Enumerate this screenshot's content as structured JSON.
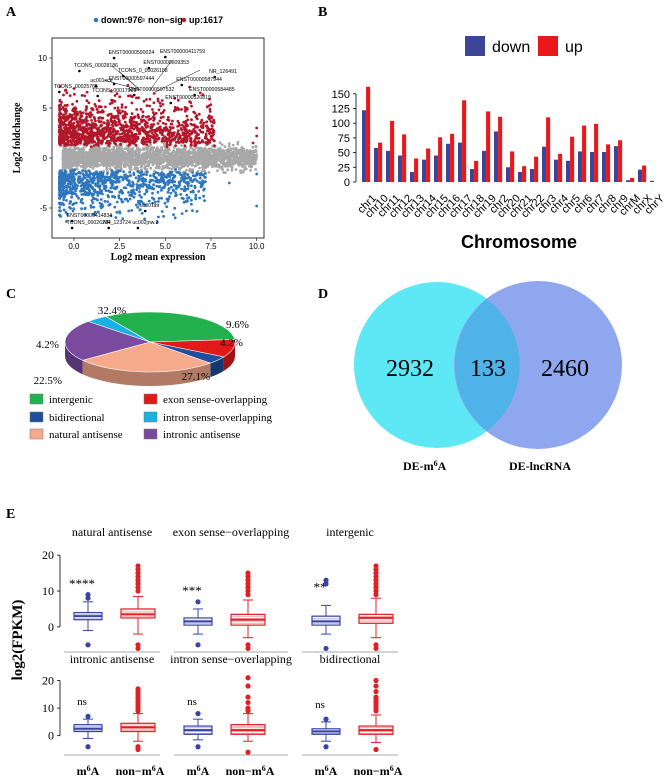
{
  "panels": {
    "A": "A",
    "B": "B",
    "C": "C",
    "D": "D",
    "E": "E"
  },
  "colors": {
    "down": "#2e77bd",
    "up": "#b2182b",
    "nonsig": "#a8a8a8",
    "bar_down": "#3c4597",
    "bar_up": "#e8181b",
    "venn_left": "#5ee8f5",
    "venn_right": "#8ea7ee",
    "venn_overlap": "#4fb2e8",
    "box_m6a": "#3a44a6",
    "box_non": "#e31f26"
  },
  "chart_data": [
    {
      "id": "A",
      "type": "scatter",
      "title": "",
      "legend": [
        {
          "key": "down",
          "label": "down:976"
        },
        {
          "key": "nonsig",
          "label": "non−sig"
        },
        {
          "key": "up",
          "label": "up:1617"
        }
      ],
      "xlabel": "Log2 mean expression",
      "ylabel": "Log2 foldchange",
      "xlim": [
        -1.2,
        10.4
      ],
      "ylim": [
        -8,
        12
      ],
      "xticks": [
        0.0,
        2.5,
        5.0,
        7.5,
        10.0
      ],
      "xtick_labels": [
        "0.0",
        "2.5",
        "5.0",
        "7.5",
        "10.0"
      ],
      "yticks": [
        -5,
        0,
        5,
        10
      ],
      "ytick_labels": [
        "-5",
        "0",
        "5",
        "10"
      ],
      "annotations": [
        {
          "text": "ENST00000590024",
          "x": 1.9,
          "y": 10.4
        },
        {
          "text": "ENST00000411759",
          "x": 4.7,
          "y": 10.5
        },
        {
          "text": "ENST00000609353",
          "x": 3.8,
          "y": 9.4
        },
        {
          "text": "TCONS_00028186",
          "x": 0.0,
          "y": 9.1
        },
        {
          "text": "TCONS_0_00026188",
          "x": 2.4,
          "y": 8.6
        },
        {
          "text": "NR_126491",
          "x": 7.4,
          "y": 8.5
        },
        {
          "text": "uc001xce",
          "x": 0.9,
          "y": 7.6
        },
        {
          "text": "ENST00000597444",
          "x": 1.9,
          "y": 7.8
        },
        {
          "text": "ENST00000587944",
          "x": 5.6,
          "y": 7.7
        },
        {
          "text": "TCONS_00025765",
          "x": -1.1,
          "y": 7.0
        },
        {
          "text": "TCONS_00017090",
          "x": 1.0,
          "y": 6.6
        },
        {
          "text": "ENST00000597532",
          "x": 3.0,
          "y": 6.7
        },
        {
          "text": "ENST00000584485",
          "x": 6.3,
          "y": 6.7
        },
        {
          "text": "ENST00000520819",
          "x": 5.0,
          "y": 5.9
        },
        {
          "text": "ENST00000414834",
          "x": -0.4,
          "y": -5.9
        },
        {
          "text": "TCONS_00026204",
          "x": -0.4,
          "y": -6.6
        },
        {
          "text": "NR_123724",
          "x": 1.6,
          "y": -6.6
        },
        {
          "text": "uc002jnw.2",
          "x": 3.2,
          "y": -6.6
        },
        {
          "text": "uc001ibt",
          "x": 3.6,
          "y": -4.9
        }
      ]
    },
    {
      "id": "B",
      "type": "bar",
      "legend": [
        {
          "key": "down",
          "label": "down"
        },
        {
          "key": "up",
          "label": "up"
        }
      ],
      "xlabel": "Chromosome",
      "ylabel": "",
      "ylim": [
        0,
        165
      ],
      "yticks": [
        0,
        25,
        50,
        75,
        100,
        125,
        150
      ],
      "categories": [
        "chr1",
        "chr10",
        "chr11",
        "chr12",
        "chr13",
        "chr14",
        "chr15",
        "chr16",
        "chr17",
        "chr18",
        "chr19",
        "chr2",
        "chr20",
        "chr21",
        "chr22",
        "chr3",
        "chr4",
        "chr5",
        "chr6",
        "chr7",
        "chr8",
        "chr9",
        "chrM",
        "chrX",
        "chrY"
      ],
      "series": [
        {
          "name": "down",
          "values": [
            122,
            58,
            53,
            45,
            17,
            38,
            45,
            65,
            67,
            22,
            53,
            86,
            25,
            17,
            22,
            60,
            38,
            36,
            52,
            51,
            51,
            61,
            3,
            21,
            2
          ]
        },
        {
          "name": "up",
          "values": [
            162,
            67,
            104,
            81,
            40,
            57,
            76,
            82,
            139,
            36,
            120,
            111,
            52,
            27,
            43,
            110,
            48,
            77,
            96,
            99,
            64,
            71,
            7,
            28,
            0
          ]
        }
      ]
    },
    {
      "id": "C",
      "type": "pie",
      "slices": [
        {
          "label": "intergenic",
          "value": 32.4,
          "pct": "32.4%",
          "color": "#22b14c"
        },
        {
          "label": "exon sense-overlapping",
          "value": 9.6,
          "pct": "9.6%",
          "color": "#e11919"
        },
        {
          "label": "bidirectional",
          "value": 4.2,
          "pct": "4.2%",
          "color": "#1f4e9c"
        },
        {
          "label": "natural antisense",
          "value": 27.1,
          "pct": "27.1%",
          "color": "#f7a98b"
        },
        {
          "label": "intronic antisense",
          "value": 22.5,
          "pct": "22.5%",
          "color": "#7a4a9e"
        },
        {
          "label": "intron sense-overlapping",
          "value": 4.2,
          "pct": "4.2%",
          "color": "#1bb0e3"
        }
      ]
    },
    {
      "id": "D",
      "type": "venn",
      "sets": [
        {
          "label": "DE-m6A",
          "only": 2932
        },
        {
          "label": "DE-lncRNA",
          "only": 2460
        }
      ],
      "overlap": 133
    },
    {
      "id": "E",
      "type": "box",
      "ylabel": "log2(FPKM)",
      "ylim": [
        -7,
        22
      ],
      "yticks": [
        0,
        10,
        20
      ],
      "group_labels": [
        "m6A",
        "non−m6A"
      ],
      "facets": [
        {
          "title": "natural antisense",
          "sig": "****",
          "m6a": {
            "q1": 2,
            "med": 3,
            "q3": 4,
            "lo": -1,
            "hi": 7,
            "outl": [
              -5,
              8,
              9
            ]
          },
          "non": {
            "q1": 2.5,
            "med": 3.5,
            "q3": 5,
            "lo": -2,
            "hi": 8.5,
            "outl": [
              -6,
              -5,
              10,
              11,
              12,
              13,
              14,
              15,
              16,
              17
            ]
          }
        },
        {
          "title": "exon sense−overlapping",
          "sig": "***",
          "m6a": {
            "q1": 0.5,
            "med": 1.5,
            "q3": 2.5,
            "lo": -2,
            "hi": 5,
            "outl": [
              -5,
              7
            ]
          },
          "non": {
            "q1": 0.5,
            "med": 2,
            "q3": 3.5,
            "lo": -3,
            "hi": 7.5,
            "outl": [
              -6,
              -5,
              9,
              10,
              11,
              12,
              13,
              14,
              15
            ]
          }
        },
        {
          "title": "intergenic",
          "sig": "**",
          "m6a": {
            "q1": 0.5,
            "med": 1.5,
            "q3": 3,
            "lo": -2,
            "hi": 6,
            "outl": [
              -6,
              12,
              13
            ]
          },
          "non": {
            "q1": 1,
            "med": 2.5,
            "q3": 3.5,
            "lo": -3,
            "hi": 8,
            "outl": [
              -6,
              -5,
              9,
              10,
              11,
              12,
              13,
              14,
              15,
              16,
              17
            ]
          }
        },
        {
          "title": "intronic antisense",
          "sig": "ns",
          "m6a": {
            "q1": 1.5,
            "med": 2.5,
            "q3": 4,
            "lo": -1,
            "hi": 6,
            "outl": [
              -4,
              7
            ]
          },
          "non": {
            "q1": 1.5,
            "med": 3,
            "q3": 4.5,
            "lo": -2,
            "hi": 8,
            "outl": [
              -5,
              -4,
              9,
              10,
              11,
              12,
              13,
              14,
              15,
              16,
              17
            ]
          }
        },
        {
          "title": "intron sense−overlapping",
          "sig": "ns",
          "m6a": {
            "q1": 0.5,
            "med": 2,
            "q3": 3.5,
            "lo": -1.5,
            "hi": 6,
            "outl": [
              -4,
              8
            ]
          },
          "non": {
            "q1": 0.5,
            "med": 2,
            "q3": 4,
            "lo": -2,
            "hi": 8,
            "outl": [
              -6,
              9,
              10,
              12,
              14,
              18,
              21
            ]
          }
        },
        {
          "title": "bidirectional",
          "sig": "ns",
          "m6a": {
            "q1": 0.5,
            "med": 1.5,
            "q3": 2.5,
            "lo": -2,
            "hi": 5,
            "outl": [
              -4,
              6
            ]
          },
          "non": {
            "q1": 0.5,
            "med": 2,
            "q3": 3.5,
            "lo": -2.5,
            "hi": 7.5,
            "outl": [
              -5,
              9,
              10,
              11,
              12,
              13,
              14,
              16,
              18,
              20
            ]
          }
        }
      ]
    }
  ]
}
